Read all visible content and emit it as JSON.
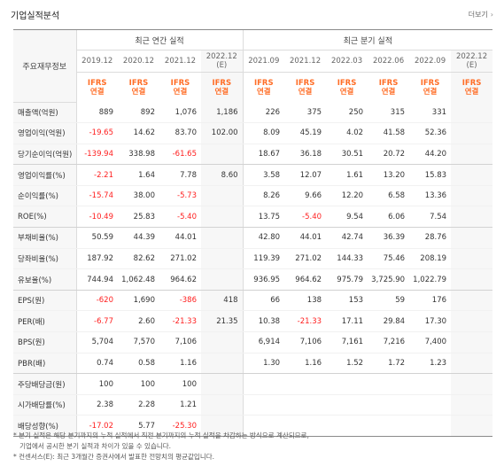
{
  "header": {
    "title": "기업실적분석",
    "more_label": "더보기",
    "more_icon": "chevron-right-icon"
  },
  "colors": {
    "negative": "#ff1e1e",
    "ifrs": "#ff6d26",
    "label_bg": "#f7f7f7"
  },
  "table": {
    "row_header": "주요재무정보",
    "groups": {
      "annual": "최근 연간 실적",
      "quarterly": "최근 분기 실적"
    },
    "periods": [
      {
        "label": "2019.12",
        "est": ""
      },
      {
        "label": "2020.12",
        "est": ""
      },
      {
        "label": "2021.12",
        "est": ""
      },
      {
        "label": "2022.12",
        "est": "(E)"
      },
      {
        "label": "2021.09",
        "est": ""
      },
      {
        "label": "2021.12",
        "est": ""
      },
      {
        "label": "2022.03",
        "est": ""
      },
      {
        "label": "2022.06",
        "est": ""
      },
      {
        "label": "2022.09",
        "est": ""
      },
      {
        "label": "2022.12",
        "est": "(E)"
      }
    ],
    "ifrs": {
      "line1": "IFRS",
      "line2": "연결"
    },
    "rows": [
      {
        "label": "매출액(억원)",
        "values": [
          "889",
          "892",
          "1,076",
          "1,186",
          "226",
          "375",
          "250",
          "315",
          "331",
          ""
        ]
      },
      {
        "label": "영업이익(억원)",
        "values": [
          "-19.65",
          "14.62",
          "83.70",
          "102.00",
          "8.09",
          "45.19",
          "4.02",
          "41.58",
          "52.36",
          ""
        ]
      },
      {
        "label": "당기순이익(억원)",
        "values": [
          "-139.94",
          "338.98",
          "-61.65",
          "",
          "18.67",
          "36.18",
          "30.51",
          "20.72",
          "44.20",
          ""
        ]
      },
      {
        "label": "영업이익률(%)",
        "values": [
          "-2.21",
          "1.64",
          "7.78",
          "8.60",
          "3.58",
          "12.07",
          "1.61",
          "13.20",
          "15.83",
          ""
        ]
      },
      {
        "label": "순이익률(%)",
        "values": [
          "-15.74",
          "38.00",
          "-5.73",
          "",
          "8.26",
          "9.66",
          "12.20",
          "6.58",
          "13.36",
          ""
        ]
      },
      {
        "label": "ROE(%)",
        "values": [
          "-10.49",
          "25.83",
          "-5.40",
          "",
          "13.75",
          "-5.40",
          "9.54",
          "6.06",
          "7.54",
          ""
        ]
      },
      {
        "label": "부채비율(%)",
        "values": [
          "50.59",
          "44.39",
          "44.01",
          "",
          "42.80",
          "44.01",
          "42.74",
          "36.39",
          "28.76",
          ""
        ]
      },
      {
        "label": "당좌비율(%)",
        "values": [
          "187.92",
          "82.62",
          "271.02",
          "",
          "119.39",
          "271.02",
          "144.33",
          "75.46",
          "208.19",
          ""
        ]
      },
      {
        "label": "유보율(%)",
        "values": [
          "744.94",
          "1,062.48",
          "964.62",
          "",
          "936.95",
          "964.62",
          "975.79",
          "3,725.90",
          "1,022.79",
          ""
        ]
      },
      {
        "label": "EPS(원)",
        "values": [
          "-620",
          "1,690",
          "-386",
          "418",
          "66",
          "138",
          "153",
          "59",
          "176",
          ""
        ]
      },
      {
        "label": "PER(배)",
        "values": [
          "-6.77",
          "2.60",
          "-21.33",
          "21.35",
          "10.38",
          "-21.33",
          "17.11",
          "29.84",
          "17.30",
          ""
        ]
      },
      {
        "label": "BPS(원)",
        "values": [
          "5,704",
          "7,570",
          "7,106",
          "",
          "6,914",
          "7,106",
          "7,161",
          "7,216",
          "7,400",
          ""
        ]
      },
      {
        "label": "PBR(배)",
        "values": [
          "0.74",
          "0.58",
          "1.16",
          "",
          "1.30",
          "1.16",
          "1.52",
          "1.72",
          "1.23",
          ""
        ]
      },
      {
        "label": "주당배당금(원)",
        "values": [
          "100",
          "100",
          "100",
          "",
          "",
          "",
          "",
          "",
          "",
          ""
        ]
      },
      {
        "label": "시가배당률(%)",
        "values": [
          "2.38",
          "2.28",
          "1.21",
          "",
          "",
          "",
          "",
          "",
          "",
          ""
        ]
      },
      {
        "label": "배당성향(%)",
        "values": [
          "-17.02",
          "5.77",
          "-25.30",
          "",
          "",
          "",
          "",
          "",
          "",
          ""
        ]
      }
    ]
  },
  "notes": [
    "* 분기 실적은 해당 분기까지의 누적 실적에서 직전 분기까지의 누적 실적을 차감하는 방식으로 계산되므로,",
    "   기업에서 공시한 분기 실적과 차이가 있을 수 있습니다.",
    "* 컨센서스(E): 최근 3개월간 증권사에서 발표한 전망치의 평균값입니다."
  ]
}
